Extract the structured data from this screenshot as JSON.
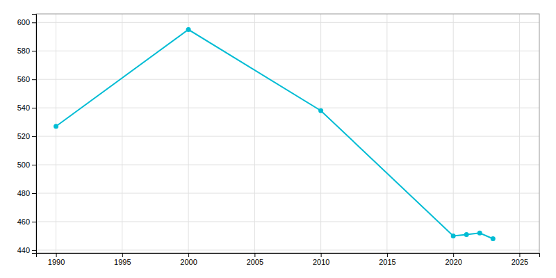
{
  "chart_data": {
    "type": "line",
    "x": [
      1990,
      2000,
      2010,
      2020,
      2021,
      2022,
      2023
    ],
    "values": [
      527,
      595,
      538,
      450,
      451,
      452,
      448
    ],
    "color": "#00bcd4",
    "marker": "circle",
    "xlim": [
      1988.5,
      2026.5
    ],
    "ylim": [
      438,
      606
    ],
    "xticks": [
      1990,
      1995,
      2000,
      2005,
      2010,
      2015,
      2020,
      2025
    ],
    "yticks": [
      440,
      460,
      480,
      500,
      520,
      540,
      560,
      580,
      600
    ],
    "grid": true
  }
}
